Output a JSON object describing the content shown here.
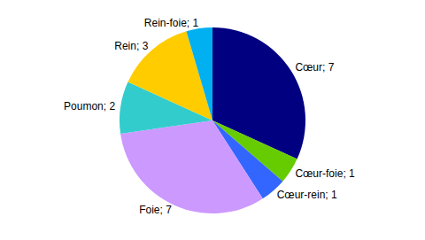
{
  "chart_data": {
    "type": "pie",
    "categories": [
      "Cœur",
      "Cœur-foie",
      "Cœur-rein",
      "Foie",
      "Poumon",
      "Rein",
      "Rein-foie"
    ],
    "values": [
      7,
      1,
      1,
      7,
      2,
      3,
      1
    ],
    "value_labels": [
      "Cœur; 7",
      "Cœur-foie; 1",
      "Cœur-rein; 1",
      "Foie; 7",
      "Poumon; 2",
      "Rein; 3",
      "Rein-foie; 1"
    ],
    "colors": [
      "#000080",
      "#66cc00",
      "#3366ff",
      "#cc99ff",
      "#33cccc",
      "#ffcc00",
      "#00b0f0"
    ],
    "data_labels": true
  }
}
